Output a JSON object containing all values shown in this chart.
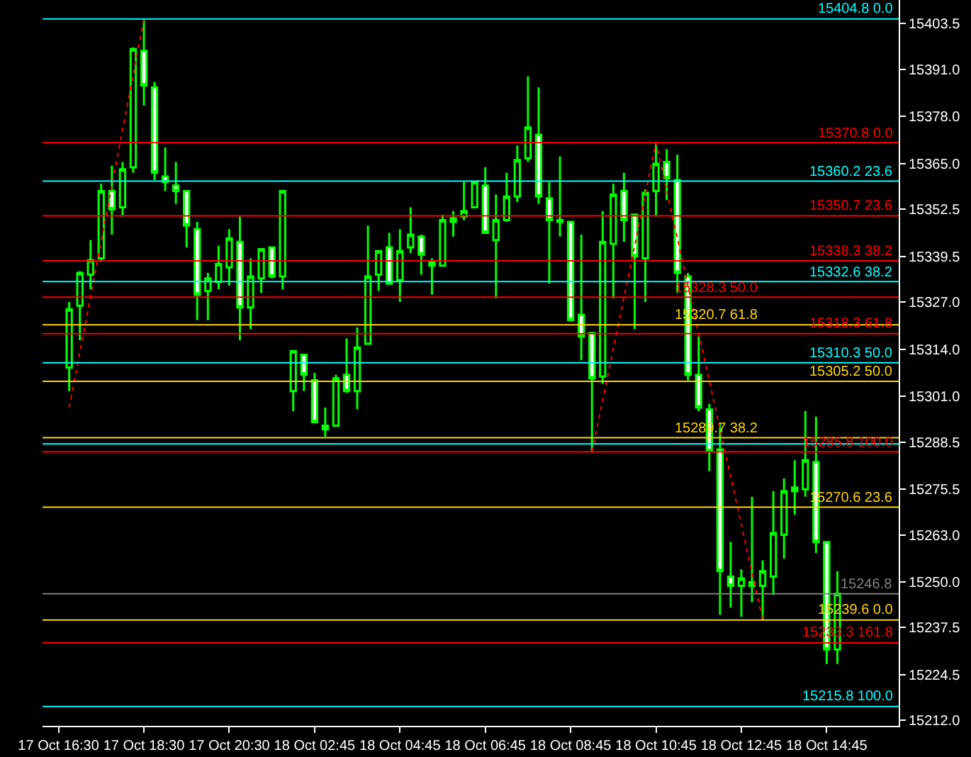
{
  "chart_data": {
    "type": "candlestick",
    "color": "#00ff00",
    "categories": [
      "17 Oct 16:30",
      null,
      null,
      null,
      null,
      null,
      null,
      null,
      "17 Oct 18:30",
      null,
      null,
      null,
      null,
      null,
      null,
      null,
      "17 Oct 20:30",
      null,
      null,
      null,
      null,
      null,
      null,
      null,
      "18 Oct 02:45",
      null,
      null,
      null,
      null,
      null,
      null,
      null,
      "18 Oct 04:45",
      null,
      null,
      null,
      null,
      null,
      null,
      null,
      "18 Oct 06:45",
      null,
      null,
      null,
      null,
      null,
      null,
      null,
      "18 Oct 08:45",
      null,
      null,
      null,
      null,
      null,
      null,
      null,
      "18 Oct 10:45",
      null,
      null,
      null,
      null,
      null,
      null,
      null,
      "18 Oct 12:45",
      null,
      null,
      null,
      null,
      null,
      null,
      null,
      "18 Oct 14:45",
      null
    ],
    "ohlc": [
      null,
      [
        15309,
        15327,
        15302.5,
        15325
      ],
      [
        15326,
        15335.5,
        15316.5,
        15335
      ],
      [
        15334.5,
        15344,
        15330.5,
        15338.5
      ],
      [
        15339,
        15359.5,
        15338,
        15357.5
      ],
      [
        15357.5,
        15364.5,
        15345.5,
        15352.5
      ],
      [
        15353,
        15365.5,
        15350.5,
        15363.5
      ],
      [
        15364,
        15397,
        15362.5,
        15396.5
      ],
      [
        15396,
        15404.8,
        15381,
        15386.5
      ],
      [
        15386,
        15387.5,
        15360.5,
        15362.5
      ],
      [
        15361.5,
        15369.5,
        15357.5,
        15360
      ],
      [
        15359,
        15365.5,
        15354,
        15357.5
      ],
      [
        15357.5,
        15357.5,
        15342,
        15348
      ],
      [
        15347,
        15349,
        15322,
        15329
      ],
      [
        15330,
        15335,
        15322,
        15333.5
      ],
      [
        15332.5,
        15342.5,
        15330.5,
        15337.5
      ],
      [
        15336.5,
        15347,
        15331.5,
        15344.5
      ],
      [
        15343.5,
        15350.5,
        15316.5,
        15325.5
      ],
      [
        15325.5,
        15339,
        15319.5,
        15334
      ],
      [
        15333.5,
        15341.5,
        15329.5,
        15341.5
      ],
      [
        15342,
        15342,
        15333.5,
        15334
      ],
      [
        15334,
        15357.5,
        15330.5,
        15357.5
      ],
      [
        15302.5,
        15313.5,
        15297,
        15313.5
      ],
      [
        15312.5,
        15312.5,
        15302.5,
        15307
      ],
      [
        15305.5,
        15307.5,
        15294,
        15294
      ],
      [
        15293,
        15298,
        15290,
        15292
      ],
      [
        15293,
        15307,
        15293,
        15306
      ],
      [
        15307,
        15317,
        15302,
        15302.5
      ],
      [
        15302.5,
        15320,
        15297.5,
        15314.5
      ],
      [
        15315.5,
        15348,
        15315.5,
        15334
      ],
      [
        15334.5,
        15341,
        15330,
        15341
      ],
      [
        15342,
        15346,
        15332,
        15332
      ],
      [
        15333,
        15347,
        15327,
        15341
      ],
      [
        15342,
        15353,
        15340.5,
        15345.5
      ],
      [
        15345,
        15345.5,
        15334.5,
        15340
      ],
      [
        15338,
        15339,
        15329,
        15337
      ],
      [
        15337,
        15351,
        15337,
        15349.5
      ],
      [
        15349,
        15352,
        15345,
        15350
      ],
      [
        15350.5,
        15360,
        15349.5,
        15352
      ],
      [
        15353,
        15360,
        15353,
        15360
      ],
      [
        15359,
        15364,
        15346,
        15346
      ],
      [
        15344,
        15356.5,
        15328,
        15349.5
      ],
      [
        15349.5,
        15362.5,
        15349,
        15356
      ],
      [
        15356,
        15370,
        15354.5,
        15366
      ],
      [
        15366.5,
        15389,
        15365.5,
        15375
      ],
      [
        15373,
        15386,
        15354,
        15356
      ],
      [
        15355.5,
        15360,
        15332,
        15349.5
      ],
      [
        15349.5,
        15367,
        15345,
        15349
      ],
      [
        15349,
        15349,
        15322,
        15322
      ],
      [
        15323.5,
        15345.5,
        15311,
        15317.5
      ],
      [
        15318.5,
        15318.5,
        15285.8,
        15306
      ],
      [
        15306.5,
        15352,
        15304.5,
        15343.5
      ],
      [
        15343,
        15359.5,
        15328,
        15356.5
      ],
      [
        15357.5,
        15362.5,
        15343.5,
        15349.5
      ],
      [
        15351,
        15351,
        15319.5,
        15339.5
      ],
      [
        15339,
        15358,
        15327,
        15357
      ],
      [
        15357.5,
        15370.8,
        15350.5,
        15365
      ],
      [
        15365.5,
        15369,
        15355,
        15361
      ],
      [
        15360.5,
        15367.5,
        15329.5,
        15335
      ],
      [
        15334,
        15335,
        15305.5,
        15307
      ],
      [
        15307,
        15317.5,
        15297,
        15298
      ],
      [
        15297.5,
        15299,
        15280.5,
        15286
      ],
      [
        15286.5,
        15293.5,
        15241,
        15253
      ],
      [
        15251.5,
        15261,
        15243,
        15249
      ],
      [
        15249,
        15253.5,
        15240.5,
        15251
      ],
      [
        15250,
        15273.5,
        15244.5,
        15249
      ],
      [
        15249,
        15256,
        15239.6,
        15253
      ],
      [
        15251.5,
        15275,
        15246.5,
        15263.5
      ],
      [
        15263,
        15278.5,
        15256.5,
        15275
      ],
      [
        15276,
        15283.5,
        15268.5,
        15275
      ],
      [
        15275.5,
        15297,
        15273.5,
        15283.5
      ],
      [
        15283,
        15295.5,
        15258,
        15261
      ],
      [
        15261,
        15261,
        15227.5,
        15231.5
      ],
      [
        15231.5,
        15253,
        15227.5,
        15246.8
      ]
    ],
    "series": [
      {
        "type": "line",
        "color": "#ff0000",
        "line_style": "dotted",
        "values": [
          null,
          15298,
          null,
          null,
          null,
          null,
          null,
          null,
          15404.8,
          null,
          null,
          null,
          null,
          null,
          null,
          null,
          null,
          null,
          null,
          null,
          null,
          null,
          null,
          null,
          null,
          null,
          null,
          null,
          null,
          null,
          null,
          null,
          null,
          null,
          null,
          null,
          null,
          null,
          null,
          null,
          null,
          null,
          null,
          null,
          null,
          null,
          null,
          null,
          null,
          null,
          null,
          null,
          null,
          null,
          null,
          null,
          null,
          null,
          null,
          null,
          null,
          null,
          null,
          null,
          null,
          null,
          null,
          null,
          null,
          null,
          null,
          null,
          null,
          null
        ]
      },
      {
        "type": "line",
        "color": "#ff0000",
        "line_style": "dotted",
        "values": [
          null,
          null,
          null,
          null,
          null,
          null,
          null,
          null,
          null,
          null,
          null,
          null,
          null,
          null,
          null,
          null,
          null,
          null,
          null,
          null,
          null,
          null,
          null,
          null,
          null,
          null,
          null,
          null,
          null,
          null,
          null,
          null,
          null,
          null,
          null,
          null,
          null,
          null,
          null,
          null,
          null,
          null,
          null,
          null,
          null,
          null,
          null,
          null,
          null,
          null,
          15285.8,
          null,
          null,
          null,
          null,
          null,
          15370.8,
          null,
          null,
          null,
          null,
          null,
          null,
          null,
          null,
          null,
          15239.6,
          null,
          null,
          null,
          null,
          null,
          null,
          null
        ]
      }
    ],
    "ylim": [
      15210.5,
      15410
    ],
    "yticks": [
      {
        "value": 15212,
        "label": "15212.0"
      },
      15224.5,
      15237.5,
      {
        "value": 15250,
        "label": "15250.0"
      },
      {
        "value": 15263,
        "label": "15263.0"
      },
      15275.5,
      15288.5,
      {
        "value": 15301,
        "label": "15301.0"
      },
      {
        "value": 15314,
        "label": "15314.0"
      },
      {
        "value": 15327,
        "label": "15327.0"
      },
      15339.5,
      15352.5,
      {
        "value": 15365,
        "label": "15365.0"
      },
      {
        "value": 15378,
        "label": "15378.0"
      },
      {
        "value": 15391,
        "label": "15391.0"
      },
      15403.5
    ],
    "ref_lines": [
      {
        "axis": "y",
        "value": 15404.8,
        "label": "15404.8 0.0",
        "color": "#00ffff"
      },
      {
        "axis": "y",
        "value": 15360.2,
        "label": "15360.2 23.6",
        "color": "#00ffff"
      },
      {
        "axis": "y",
        "value": 15332.6,
        "label": "15332.6 38.2",
        "color": "#00ffff"
      },
      {
        "axis": "y",
        "value": 15310.3,
        "label": "15310.3 50.0",
        "color": "#00ffff"
      },
      {
        "axis": "y",
        "value": 15288,
        "label": null,
        "color": "#00ffff"
      },
      {
        "axis": "y",
        "value": 15215.8,
        "label": "15215.8 100.0",
        "color": "#00ffff"
      },
      {
        "axis": "y",
        "value": 15370.8,
        "label": "15370.8 0.0",
        "color": "#ff0000"
      },
      {
        "axis": "y",
        "value": 15350.7,
        "label": "15350.7 23.6",
        "color": "#ff0000"
      },
      {
        "axis": "y",
        "value": 15338.3,
        "label": "15338.3 38.2",
        "color": "#ff0000"
      },
      {
        "axis": "y",
        "value": 15328.3,
        "label": "15328.3 50.0",
        "color": "#ff0000"
      },
      {
        "axis": "y",
        "value": 15318.3,
        "label": "15318.3 61.8",
        "color": "#ff0000"
      },
      {
        "axis": "y",
        "value": 15285.8,
        "label": "15285.8 100.0",
        "color": "#ff0000"
      },
      {
        "axis": "y",
        "value": 15233.3,
        "label": "15233.3 161.8",
        "color": "#ff0000"
      },
      {
        "axis": "y",
        "value": 15320.7,
        "label": "15320.7 61.8",
        "color": "#ffd700"
      },
      {
        "axis": "y",
        "value": 15305.2,
        "label": "15305.2 50.0",
        "color": "#ffd700"
      },
      {
        "axis": "y",
        "value": 15289.7,
        "label": "15289.7 38.2",
        "color": "#ffd700"
      },
      {
        "axis": "y",
        "value": 15270.6,
        "label": "15270.6 23.6",
        "color": "#ffd700"
      },
      {
        "axis": "y",
        "value": 15239.6,
        "label": "15239.6 0.0",
        "color": "#ffd700"
      },
      {
        "axis": "y",
        "value": 15246.8,
        "label": "15246.8",
        "color": "#808080"
      }
    ]
  }
}
